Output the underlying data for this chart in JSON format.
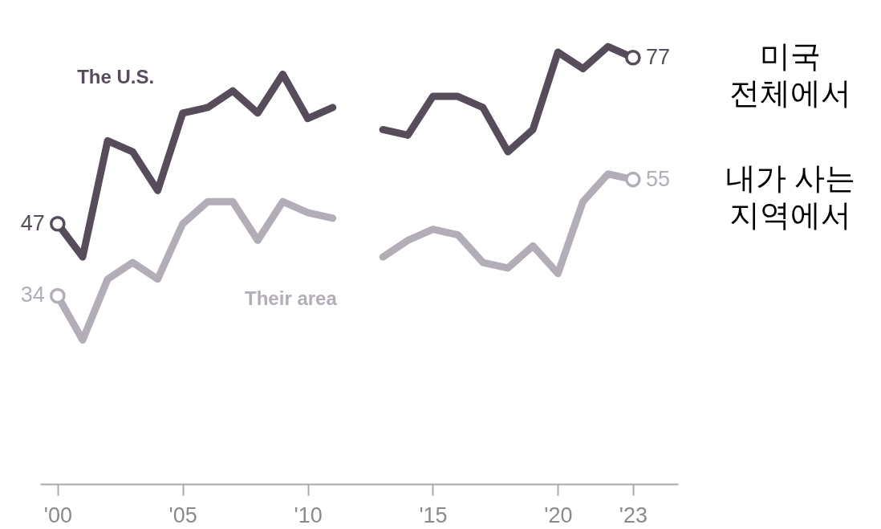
{
  "chart_data": {
    "type": "line",
    "x": [
      2000,
      2001,
      2002,
      2003,
      2004,
      2005,
      2006,
      2007,
      2008,
      2009,
      2010,
      2011,
      2012,
      2013,
      2014,
      2015,
      2016,
      2017,
      2018,
      2019,
      2020,
      2021,
      2022,
      2023
    ],
    "xlim": [
      1999.3,
      2024.8
    ],
    "xticks": [
      {
        "value": 2000,
        "label": "'00"
      },
      {
        "value": 2005,
        "label": "'05"
      },
      {
        "value": 2010,
        "label": "'10"
      },
      {
        "value": 2015,
        "label": "'15"
      },
      {
        "value": 2020,
        "label": "'20"
      },
      {
        "value": 2023,
        "label": "'23"
      }
    ],
    "series": [
      {
        "name": "The U.S.",
        "color": "#564c5a",
        "values": [
          47,
          41,
          62,
          60,
          53,
          67,
          68,
          71,
          67,
          74,
          66,
          68,
          null,
          64,
          63,
          70,
          70,
          68,
          60,
          64,
          78,
          75,
          79,
          77
        ],
        "value_labels": [
          "47",
          null,
          null,
          null,
          null,
          null,
          null,
          null,
          null,
          null,
          null,
          null,
          null,
          null,
          null,
          null,
          null,
          null,
          null,
          null,
          null,
          null,
          null,
          "77"
        ]
      },
      {
        "name": "Their area",
        "color": "#b3adb8",
        "values": [
          34,
          26,
          37,
          40,
          37,
          47,
          51,
          51,
          44,
          51,
          49,
          48,
          null,
          41,
          44,
          46,
          45,
          40,
          39,
          43,
          38,
          51,
          56,
          55
        ],
        "value_labels": [
          "34",
          null,
          null,
          null,
          null,
          null,
          null,
          null,
          null,
          null,
          null,
          null,
          null,
          null,
          null,
          null,
          null,
          null,
          null,
          null,
          null,
          null,
          null,
          "55"
        ]
      }
    ],
    "annotations": [
      "미국\n전체에서",
      "내가 사는\n지역에서"
    ],
    "grid": false,
    "line_style": "solid"
  }
}
